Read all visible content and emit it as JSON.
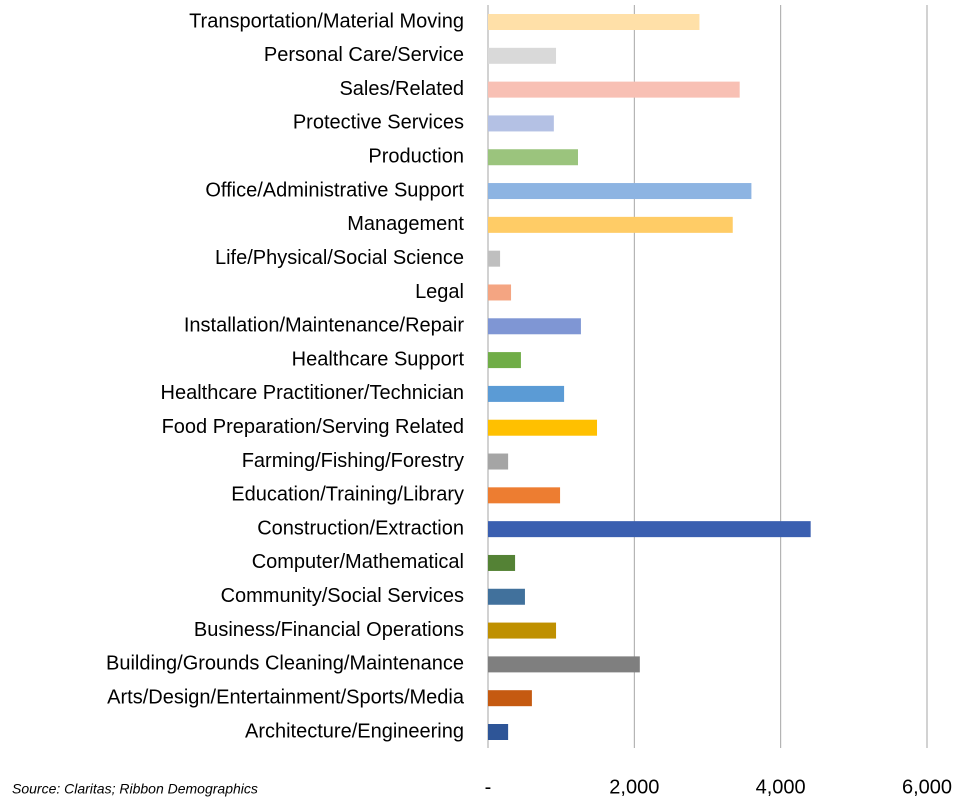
{
  "chart_data": {
    "type": "hbar",
    "source": "Source: Claritas; Ribbon Demographics",
    "categories": [
      "Transportation/Material Moving",
      "Personal Care/Service",
      "Sales/Related",
      "Protective Services",
      "Production",
      "Office/Administrative Support",
      "Management",
      "Life/Physical/Social Science",
      "Legal",
      "Installation/Maintenance/Repair",
      "Healthcare Support",
      "Healthcare Practitioner/Technician",
      "Food Preparation/Serving Related",
      "Farming/Fishing/Forestry",
      "Education/Training/Library",
      "Construction/Extraction",
      "Computer/Mathematical",
      "Community/Social Services",
      "Business/Financial Operations",
      "Building/Grounds Cleaning/Maintenance",
      "Arts/Design/Entertainment/Sports/Media",
      "Architecture/Engineering"
    ],
    "values": [
      2890,
      930,
      3440,
      900,
      1230,
      3600,
      3345,
      165,
      315,
      1270,
      450,
      1040,
      1490,
      275,
      985,
      4410,
      370,
      505,
      930,
      2075,
      600,
      275
    ],
    "colors": [
      "#ffe0a8",
      "#d9d9d9",
      "#f8c0b4",
      "#b4c1e4",
      "#9bc47d",
      "#8db4e2",
      "#ffcc66",
      "#bfbfbf",
      "#f4a582",
      "#7f96d4",
      "#70ad47",
      "#5b9bd5",
      "#ffc000",
      "#a5a5a5",
      "#ed7d31",
      "#3a5fb0",
      "#548235",
      "#41719c",
      "#bf9000",
      "#7f7f7f",
      "#c55a11",
      "#2e5597"
    ],
    "xlim": [
      0,
      6000
    ],
    "xticks": [
      {
        "value": 0,
        "label": "-"
      },
      {
        "value": 2000,
        "label": "2,000"
      },
      {
        "value": 4000,
        "label": "4,000"
      },
      {
        "value": 6000,
        "label": "6,000"
      }
    ],
    "grid": true
  }
}
